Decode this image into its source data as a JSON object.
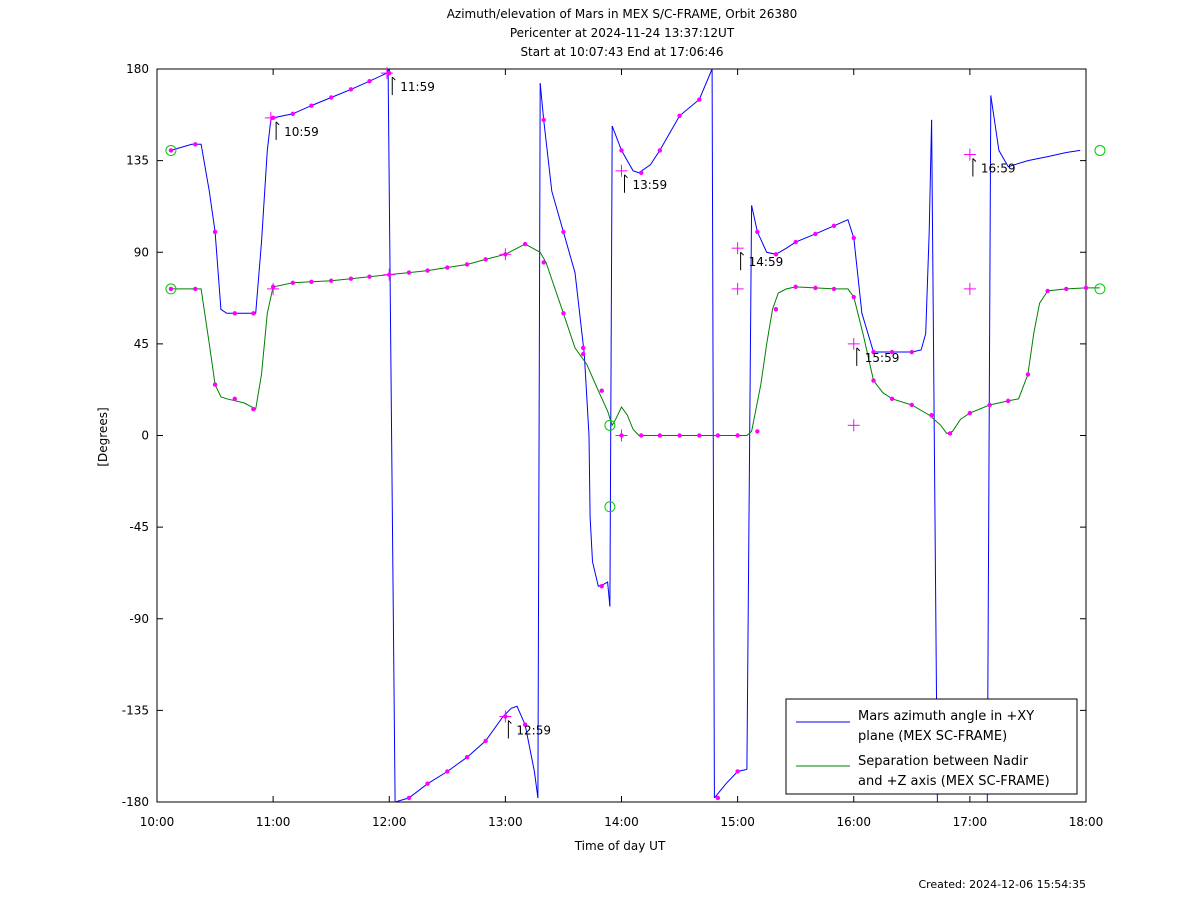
{
  "chart_data": {
    "type": "line",
    "title": "Azimuth/elevation of Mars in MEX S/C-FRAME,  Orbit 26380",
    "subtitle1": "Pericenter at 2024-11-24 13:37:12UT",
    "subtitle2": "Start at 10:07:43 End at 17:06:46",
    "xlabel": "Time of day UT",
    "ylabel": "[Degrees]",
    "xlim": [
      10,
      18
    ],
    "ylim": [
      -180,
      180
    ],
    "x_ticks": [
      10,
      11,
      12,
      13,
      14,
      15,
      16,
      17,
      18
    ],
    "x_tick_labels": [
      "10:00",
      "11:00",
      "12:00",
      "13:00",
      "14:00",
      "15:00",
      "16:00",
      "17:00",
      "18:00"
    ],
    "y_ticks": [
      180,
      135,
      90,
      45,
      0,
      -45,
      -90,
      -135,
      -180
    ],
    "y_tick_labels": [
      "180",
      "135",
      "90",
      "45",
      "0",
      "-45",
      "-90",
      "-135",
      "-180"
    ],
    "grid": false,
    "legend_position": "bottom-right",
    "series": [
      {
        "name": "Mars azimuth angle in +XY plane (MEX SC-FRAME)",
        "legend_line1": "Mars azimuth angle in +XY",
        "legend_line2": "plane (MEX SC-FRAME)",
        "color": "#0000ff",
        "segments": [
          [
            [
              10.12,
              140
            ],
            [
              10.3,
              143
            ],
            [
              10.38,
              143
            ],
            [
              10.45,
              120
            ],
            [
              10.5,
              100
            ],
            [
              10.55,
              62
            ],
            [
              10.6,
              60
            ],
            [
              10.85,
              60
            ],
            [
              10.9,
              95
            ],
            [
              10.95,
              140
            ],
            [
              10.98,
              155
            ],
            [
              11.0,
              156
            ],
            [
              11.17,
              158
            ],
            [
              11.33,
              162
            ],
            [
              11.5,
              166
            ],
            [
              11.67,
              170
            ],
            [
              11.83,
              174
            ],
            [
              11.98,
              178
            ],
            [
              11.99,
              180
            ]
          ],
          [
            [
              11.99,
              180
            ],
            [
              12.05,
              -180
            ]
          ],
          [
            [
              12.05,
              -180
            ],
            [
              12.17,
              -178
            ],
            [
              12.33,
              -171
            ],
            [
              12.5,
              -165
            ],
            [
              12.67,
              -158
            ],
            [
              12.83,
              -150
            ],
            [
              12.98,
              -138
            ],
            [
              13.05,
              -134
            ],
            [
              13.1,
              -133
            ],
            [
              13.17,
              -142
            ],
            [
              13.25,
              -165
            ],
            [
              13.28,
              -178
            ]
          ],
          [
            [
              13.28,
              -178
            ],
            [
              13.3,
              173
            ]
          ],
          [
            [
              13.3,
              173
            ],
            [
              13.33,
              155
            ],
            [
              13.4,
              120
            ],
            [
              13.5,
              100
            ],
            [
              13.6,
              80
            ],
            [
              13.68,
              40
            ],
            [
              13.72,
              0
            ],
            [
              13.73,
              -40
            ],
            [
              13.75,
              -62
            ],
            [
              13.8,
              -74
            ],
            [
              13.85,
              -73
            ],
            [
              13.88,
              -72
            ],
            [
              13.9,
              -84
            ]
          ],
          [
            [
              13.9,
              -84
            ],
            [
              13.92,
              152
            ]
          ],
          [
            [
              13.92,
              152
            ],
            [
              14.0,
              140
            ],
            [
              14.1,
              130
            ],
            [
              14.15,
              129
            ],
            [
              14.25,
              133
            ],
            [
              14.33,
              140
            ],
            [
              14.5,
              157
            ],
            [
              14.67,
              165
            ],
            [
              14.78,
              180
            ]
          ],
          [
            [
              14.78,
              180
            ],
            [
              14.8,
              -178
            ]
          ],
          [
            [
              14.8,
              -178
            ],
            [
              14.9,
              -171
            ],
            [
              15.0,
              -165
            ],
            [
              15.08,
              -164
            ]
          ],
          [
            [
              15.08,
              -164
            ],
            [
              15.12,
              113
            ]
          ],
          [
            [
              15.12,
              113
            ],
            [
              15.17,
              100
            ],
            [
              15.25,
              90
            ],
            [
              15.33,
              89
            ],
            [
              15.42,
              92
            ],
            [
              15.5,
              95
            ],
            [
              15.67,
              99
            ],
            [
              15.83,
              103
            ],
            [
              15.95,
              106
            ],
            [
              16.0,
              97
            ],
            [
              16.07,
              60
            ],
            [
              16.17,
              41
            ],
            [
              16.33,
              41
            ],
            [
              16.5,
              41
            ],
            [
              16.58,
              42
            ],
            [
              16.62,
              50
            ],
            [
              16.65,
              100
            ],
            [
              16.67,
              155
            ]
          ],
          [
            [
              16.67,
              155
            ],
            [
              16.72,
              -180
            ]
          ],
          [
            [
              17.15,
              -180
            ],
            [
              17.18,
              167
            ]
          ],
          [
            [
              17.18,
              167
            ],
            [
              17.25,
              140
            ],
            [
              17.33,
              132
            ],
            [
              17.5,
              135
            ],
            [
              17.67,
              137
            ],
            [
              17.83,
              139
            ],
            [
              17.95,
              140
            ]
          ]
        ]
      },
      {
        "name": "Separation between Nadir and +Z axis (MEX SC-FRAME)",
        "legend_line1": "Separation between Nadir",
        "legend_line2": "and +Z axis (MEX SC-FRAME)",
        "color": "#008000",
        "segments": [
          [
            [
              10.12,
              72
            ],
            [
              10.3,
              72
            ],
            [
              10.38,
              72
            ],
            [
              10.45,
              45
            ],
            [
              10.5,
              25
            ],
            [
              10.55,
              19
            ],
            [
              10.6,
              18
            ],
            [
              10.75,
              16
            ],
            [
              10.85,
              13
            ],
            [
              10.9,
              30
            ],
            [
              10.95,
              60
            ],
            [
              11.0,
              73
            ],
            [
              11.17,
              75
            ],
            [
              11.33,
              75.5
            ],
            [
              11.5,
              76
            ],
            [
              11.67,
              77
            ],
            [
              11.83,
              78
            ],
            [
              12.0,
              79
            ],
            [
              12.17,
              80
            ],
            [
              12.33,
              81
            ],
            [
              12.5,
              82.5
            ],
            [
              12.67,
              84
            ],
            [
              12.83,
              86.5
            ],
            [
              13.0,
              89
            ],
            [
              13.17,
              94
            ],
            [
              13.3,
              90
            ],
            [
              13.35,
              85
            ],
            [
              13.5,
              60
            ],
            [
              13.6,
              43
            ],
            [
              13.7,
              35
            ],
            [
              13.8,
              22
            ],
            [
              13.88,
              12
            ],
            [
              13.92,
              5
            ],
            [
              13.95,
              8
            ],
            [
              14.0,
              14
            ],
            [
              14.05,
              10
            ],
            [
              14.1,
              3
            ],
            [
              14.15,
              0
            ],
            [
              14.3,
              0
            ],
            [
              14.5,
              0
            ],
            [
              14.67,
              0
            ],
            [
              14.83,
              0
            ],
            [
              15.0,
              0
            ],
            [
              15.08,
              0
            ],
            [
              15.12,
              2
            ],
            [
              15.2,
              25
            ],
            [
              15.25,
              45
            ],
            [
              15.3,
              62
            ],
            [
              15.35,
              70
            ],
            [
              15.42,
              72
            ],
            [
              15.5,
              73
            ],
            [
              15.67,
              72.5
            ],
            [
              15.83,
              72
            ],
            [
              15.95,
              72
            ],
            [
              16.0,
              68
            ],
            [
              16.08,
              50
            ],
            [
              16.17,
              27
            ],
            [
              16.25,
              21
            ],
            [
              16.33,
              18
            ],
            [
              16.5,
              15
            ],
            [
              16.65,
              10
            ],
            [
              16.75,
              5
            ],
            [
              16.8,
              1
            ],
            [
              16.85,
              2
            ],
            [
              16.92,
              8
            ],
            [
              17.0,
              11
            ],
            [
              17.17,
              15
            ],
            [
              17.33,
              17
            ],
            [
              17.42,
              18
            ],
            [
              17.5,
              30
            ],
            [
              17.55,
              50
            ],
            [
              17.6,
              65
            ],
            [
              17.67,
              71
            ],
            [
              17.83,
              72
            ],
            [
              18.0,
              72.5
            ],
            [
              18.12,
              72.5
            ]
          ]
        ]
      }
    ],
    "markers": [
      [
        10.12,
        140
      ],
      [
        10.33,
        143
      ],
      [
        10.5,
        100
      ],
      [
        10.67,
        60
      ],
      [
        10.83,
        60
      ],
      [
        11.0,
        156
      ],
      [
        11.17,
        158
      ],
      [
        11.33,
        162
      ],
      [
        11.5,
        166
      ],
      [
        11.67,
        170
      ],
      [
        11.83,
        174
      ],
      [
        12.0,
        178
      ],
      [
        12.17,
        -178
      ],
      [
        12.33,
        -171
      ],
      [
        12.5,
        -165
      ],
      [
        12.67,
        -158
      ],
      [
        12.83,
        -150
      ],
      [
        13.0,
        -138
      ],
      [
        13.17,
        -142
      ],
      [
        13.33,
        155
      ],
      [
        13.5,
        100
      ],
      [
        13.67,
        40
      ],
      [
        13.83,
        -74
      ],
      [
        14.0,
        140
      ],
      [
        14.17,
        129
      ],
      [
        14.33,
        140
      ],
      [
        14.5,
        157
      ],
      [
        14.67,
        165
      ],
      [
        14.83,
        -178
      ],
      [
        15.0,
        -165
      ],
      [
        15.17,
        100
      ],
      [
        15.33,
        89
      ],
      [
        15.5,
        95
      ],
      [
        15.67,
        99
      ],
      [
        15.83,
        103
      ],
      [
        16.0,
        97
      ],
      [
        16.17,
        41
      ],
      [
        16.33,
        41
      ],
      [
        16.5,
        41
      ],
      [
        10.12,
        72
      ],
      [
        10.33,
        72
      ],
      [
        10.5,
        25
      ],
      [
        10.67,
        18
      ],
      [
        10.83,
        13
      ],
      [
        11.0,
        73
      ],
      [
        11.17,
        75
      ],
      [
        11.33,
        75.5
      ],
      [
        11.5,
        76
      ],
      [
        11.67,
        77
      ],
      [
        11.83,
        78
      ],
      [
        12.0,
        79
      ],
      [
        12.17,
        80
      ],
      [
        12.33,
        81
      ],
      [
        12.5,
        82.5
      ],
      [
        12.67,
        84
      ],
      [
        12.83,
        86.5
      ],
      [
        13.0,
        89
      ],
      [
        13.17,
        94
      ],
      [
        13.33,
        85
      ],
      [
        13.5,
        60
      ],
      [
        13.67,
        43
      ],
      [
        13.83,
        22
      ],
      [
        14.0,
        0
      ],
      [
        14.17,
        0
      ],
      [
        14.33,
        0
      ],
      [
        14.5,
        0
      ],
      [
        14.67,
        0
      ],
      [
        14.83,
        0
      ],
      [
        15.0,
        0
      ],
      [
        15.17,
        2
      ],
      [
        15.33,
        62
      ],
      [
        15.5,
        73
      ],
      [
        15.67,
        72.5
      ],
      [
        15.83,
        72
      ],
      [
        16.0,
        68
      ],
      [
        16.17,
        27
      ],
      [
        16.33,
        18
      ],
      [
        16.5,
        15
      ],
      [
        16.67,
        10
      ],
      [
        16.83,
        1
      ],
      [
        17.0,
        11
      ],
      [
        17.17,
        15
      ],
      [
        17.33,
        17
      ],
      [
        17.5,
        30
      ],
      [
        17.67,
        71
      ],
      [
        17.83,
        72
      ],
      [
        18.0,
        72.5
      ]
    ],
    "crosses": [
      [
        10.98,
        156
      ],
      [
        11.0,
        72
      ],
      [
        11.98,
        178
      ],
      [
        12.0,
        79
      ],
      [
        13.0,
        -138
      ],
      [
        13.0,
        89
      ],
      [
        14.0,
        130
      ],
      [
        14.0,
        0
      ],
      [
        15.0,
        92
      ],
      [
        15.0,
        72
      ],
      [
        16.0,
        45
      ],
      [
        16.0,
        5
      ],
      [
        17.0,
        138
      ],
      [
        17.0,
        72
      ]
    ],
    "circles": [
      [
        10.12,
        140
      ],
      [
        10.12,
        72
      ],
      [
        13.9,
        5
      ],
      [
        13.9,
        -35
      ],
      [
        18.12,
        140
      ],
      [
        18.12,
        72
      ]
    ],
    "time_annotations": [
      {
        "label": "10:59",
        "x": 11.0,
        "y": 156
      },
      {
        "label": "11:59",
        "x": 12.0,
        "y": 178
      },
      {
        "label": "12:59",
        "x": 13.0,
        "y": -138
      },
      {
        "label": "13:59",
        "x": 14.0,
        "y": 130
      },
      {
        "label": "14:59",
        "x": 15.0,
        "y": 92
      },
      {
        "label": "15:59",
        "x": 16.0,
        "y": 45
      },
      {
        "label": "16:59",
        "x": 17.0,
        "y": 138
      }
    ],
    "marker_color": "#ff00ff",
    "circle_color": "#00cc00",
    "created": "Created: 2024-12-06 15:54:35"
  }
}
